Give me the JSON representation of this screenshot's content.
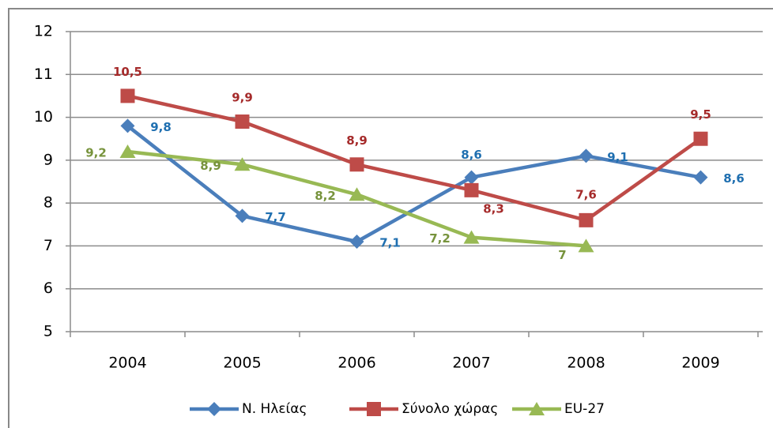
{
  "chart_data": {
    "type": "line",
    "categories": [
      "2004",
      "2005",
      "2006",
      "2007",
      "2008",
      "2009"
    ],
    "series": [
      {
        "name": "Ν. Ηλείας",
        "color": "#4a7ebb",
        "marker": "diamond",
        "values": [
          9.8,
          7.7,
          7.1,
          8.6,
          9.1,
          8.6
        ],
        "value_labels": [
          "9,8",
          "7,7",
          "7,1",
          "8,6",
          "9,1",
          "8,6"
        ]
      },
      {
        "name": "Σύνολο χώρας",
        "color": "#be4b48",
        "marker": "square",
        "values": [
          10.5,
          9.9,
          8.9,
          8.3,
          7.6,
          9.5
        ],
        "value_labels": [
          "10,5",
          "9,9",
          "8,9",
          "8,3",
          "7,6",
          "9,5"
        ]
      },
      {
        "name": "EU-27",
        "color": "#98b954",
        "marker": "triangle",
        "values": [
          9.2,
          8.9,
          8.2,
          7.2,
          7,
          null
        ],
        "value_labels": [
          "9,2",
          "8,9",
          "8,2",
          "7,2",
          "7",
          null
        ]
      }
    ],
    "ylim": [
      5,
      12
    ],
    "yticks": [
      5,
      6,
      7,
      8,
      9,
      10,
      11,
      12
    ],
    "grid": true,
    "legend": "bottom"
  }
}
